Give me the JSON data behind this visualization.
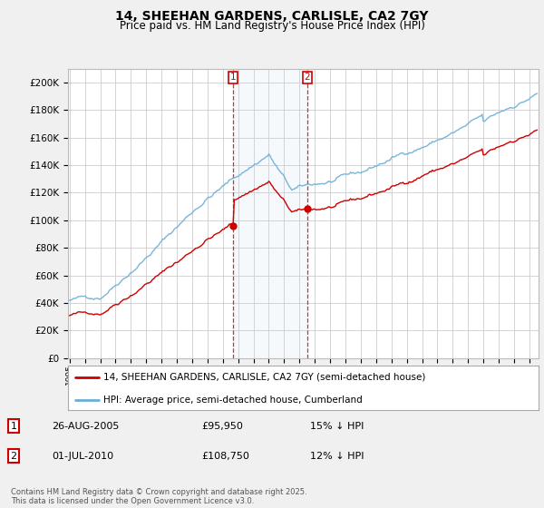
{
  "title": "14, SHEEHAN GARDENS, CARLISLE, CA2 7GY",
  "subtitle": "Price paid vs. HM Land Registry's House Price Index (HPI)",
  "ylim": [
    0,
    210000
  ],
  "yticks": [
    0,
    20000,
    40000,
    60000,
    80000,
    100000,
    120000,
    140000,
    160000,
    180000,
    200000
  ],
  "hpi_color": "#6baed6",
  "price_color": "#cc0000",
  "background_color": "#f0f0f0",
  "plot_bg_color": "#ffffff",
  "grid_color": "#cccccc",
  "sale1_x": 2005.65,
  "sale1_price": 95950,
  "sale2_x": 2010.5,
  "sale2_price": 108750,
  "legend_line1": "14, SHEEHAN GARDENS, CARLISLE, CA2 7GY (semi-detached house)",
  "legend_line2": "HPI: Average price, semi-detached house, Cumberland",
  "annotation1_date": "26-AUG-2005",
  "annotation1_price": "£95,950",
  "annotation1_hpi": "15% ↓ HPI",
  "annotation2_date": "01-JUL-2010",
  "annotation2_price": "£108,750",
  "annotation2_hpi": "12% ↓ HPI",
  "footnote": "Contains HM Land Registry data © Crown copyright and database right 2025.\nThis data is licensed under the Open Government Licence v3.0.",
  "xstart": 1995,
  "xend": 2025
}
